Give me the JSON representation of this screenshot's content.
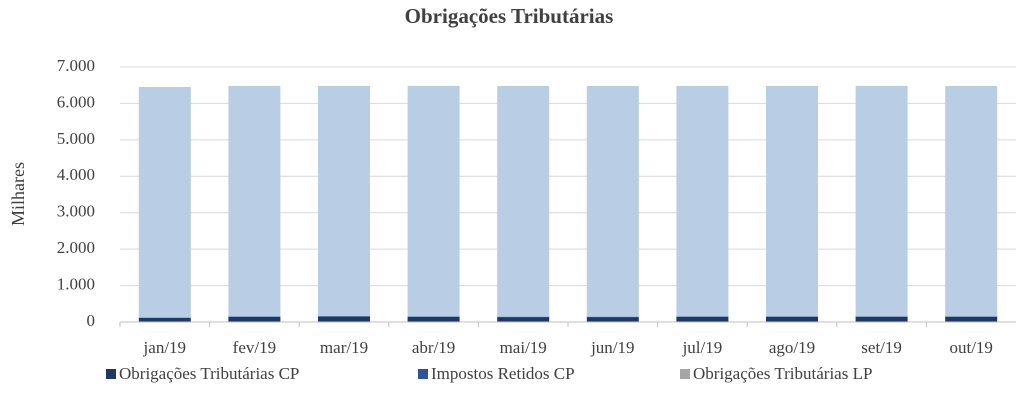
{
  "chart_data": {
    "type": "stacked_bar",
    "title": "Obrigações Tributárias",
    "y_label": "Milhares",
    "categories": [
      "jan/19",
      "fev/19",
      "mar/19",
      "abr/19",
      "mai/19",
      "jun/19",
      "jul/19",
      "ago/19",
      "set/19",
      "out/19"
    ],
    "series": [
      {
        "name": "Obrigações Tributárias CP",
        "color": "#1f3864",
        "values": [
          110,
          140,
          150,
          140,
          135,
          135,
          145,
          145,
          145,
          145
        ]
      },
      {
        "name": "Impostos Retidos CP",
        "color": "#2f5597",
        "values": [
          10,
          10,
          10,
          10,
          10,
          10,
          10,
          10,
          10,
          10
        ]
      },
      {
        "name": "Obrigações Tributárias LP",
        "color": "#b9cde5",
        "legend_color": "#a6a6a6",
        "values": [
          6330,
          6330,
          6320,
          6330,
          6335,
          6335,
          6325,
          6325,
          6325,
          6325
        ]
      }
    ],
    "ylim": [
      0,
      7000
    ],
    "yticks": [
      0,
      {
        "value": 1000,
        "label": "1.000"
      },
      {
        "value": 2000,
        "label": "2.000"
      },
      {
        "value": 3000,
        "label": "3.000"
      },
      {
        "value": 4000,
        "label": "4.000"
      },
      {
        "value": 5000,
        "label": "5.000"
      },
      {
        "value": 6000,
        "label": "6.000"
      },
      {
        "value": 7000,
        "label": "7.000"
      }
    ],
    "legend": "bottom"
  }
}
